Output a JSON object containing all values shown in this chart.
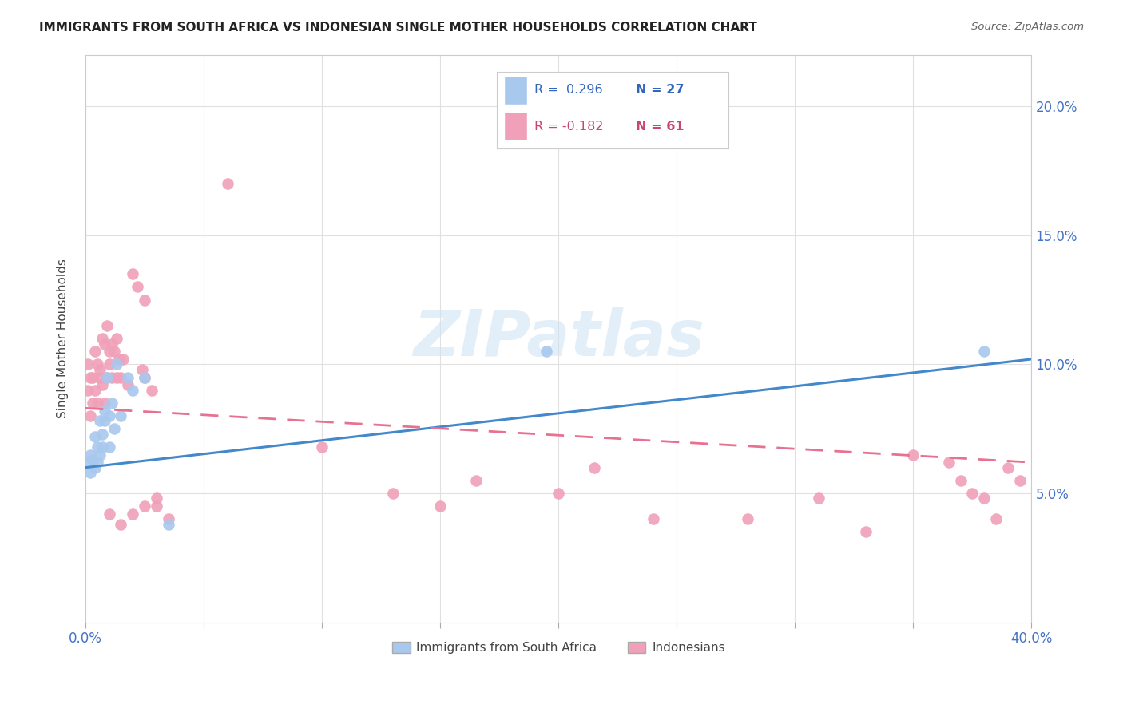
{
  "title": "IMMIGRANTS FROM SOUTH AFRICA VS INDONESIAN SINGLE MOTHER HOUSEHOLDS CORRELATION CHART",
  "source": "Source: ZipAtlas.com",
  "ylabel": "Single Mother Households",
  "xlim": [
    0.0,
    0.4
  ],
  "ylim": [
    0.0,
    0.22
  ],
  "blue_color": "#A8C8EE",
  "pink_color": "#F0A0B8",
  "blue_line_color": "#4488CC",
  "pink_line_color": "#E87090",
  "watermark": "ZIPatlas",
  "background_color": "#FFFFFF",
  "grid_color": "#E0E0E0",
  "blue_scatter_x": [
    0.001,
    0.002,
    0.002,
    0.003,
    0.004,
    0.004,
    0.005,
    0.005,
    0.006,
    0.006,
    0.007,
    0.007,
    0.008,
    0.008,
    0.009,
    0.01,
    0.01,
    0.011,
    0.012,
    0.013,
    0.015,
    0.018,
    0.02,
    0.025,
    0.035,
    0.195,
    0.38
  ],
  "blue_scatter_y": [
    0.062,
    0.058,
    0.065,
    0.063,
    0.072,
    0.06,
    0.062,
    0.068,
    0.078,
    0.065,
    0.068,
    0.073,
    0.078,
    0.082,
    0.095,
    0.068,
    0.08,
    0.085,
    0.075,
    0.1,
    0.08,
    0.095,
    0.09,
    0.095,
    0.038,
    0.105,
    0.105
  ],
  "pink_scatter_x": [
    0.001,
    0.001,
    0.002,
    0.002,
    0.003,
    0.003,
    0.004,
    0.004,
    0.005,
    0.005,
    0.006,
    0.006,
    0.007,
    0.007,
    0.008,
    0.008,
    0.009,
    0.009,
    0.01,
    0.01,
    0.011,
    0.011,
    0.012,
    0.013,
    0.013,
    0.014,
    0.015,
    0.016,
    0.018,
    0.02,
    0.022,
    0.024,
    0.025,
    0.025,
    0.028,
    0.03,
    0.06,
    0.1,
    0.13,
    0.15,
    0.165,
    0.2,
    0.215,
    0.24,
    0.28,
    0.31,
    0.33,
    0.35,
    0.365,
    0.37,
    0.375,
    0.38,
    0.385,
    0.39,
    0.395,
    0.01,
    0.015,
    0.02,
    0.025,
    0.03,
    0.035
  ],
  "pink_scatter_y": [
    0.09,
    0.1,
    0.095,
    0.08,
    0.095,
    0.085,
    0.105,
    0.09,
    0.1,
    0.085,
    0.095,
    0.098,
    0.11,
    0.092,
    0.108,
    0.085,
    0.115,
    0.095,
    0.1,
    0.105,
    0.095,
    0.108,
    0.105,
    0.11,
    0.095,
    0.102,
    0.095,
    0.102,
    0.092,
    0.135,
    0.13,
    0.098,
    0.095,
    0.125,
    0.09,
    0.045,
    0.17,
    0.068,
    0.05,
    0.045,
    0.055,
    0.05,
    0.06,
    0.04,
    0.04,
    0.048,
    0.035,
    0.065,
    0.062,
    0.055,
    0.05,
    0.048,
    0.04,
    0.06,
    0.055,
    0.042,
    0.038,
    0.042,
    0.045,
    0.048,
    0.04
  ],
  "blue_line_x": [
    0.0,
    0.4
  ],
  "blue_line_y": [
    0.06,
    0.102
  ],
  "pink_line_x": [
    0.0,
    0.4
  ],
  "pink_line_y": [
    0.083,
    0.062
  ]
}
